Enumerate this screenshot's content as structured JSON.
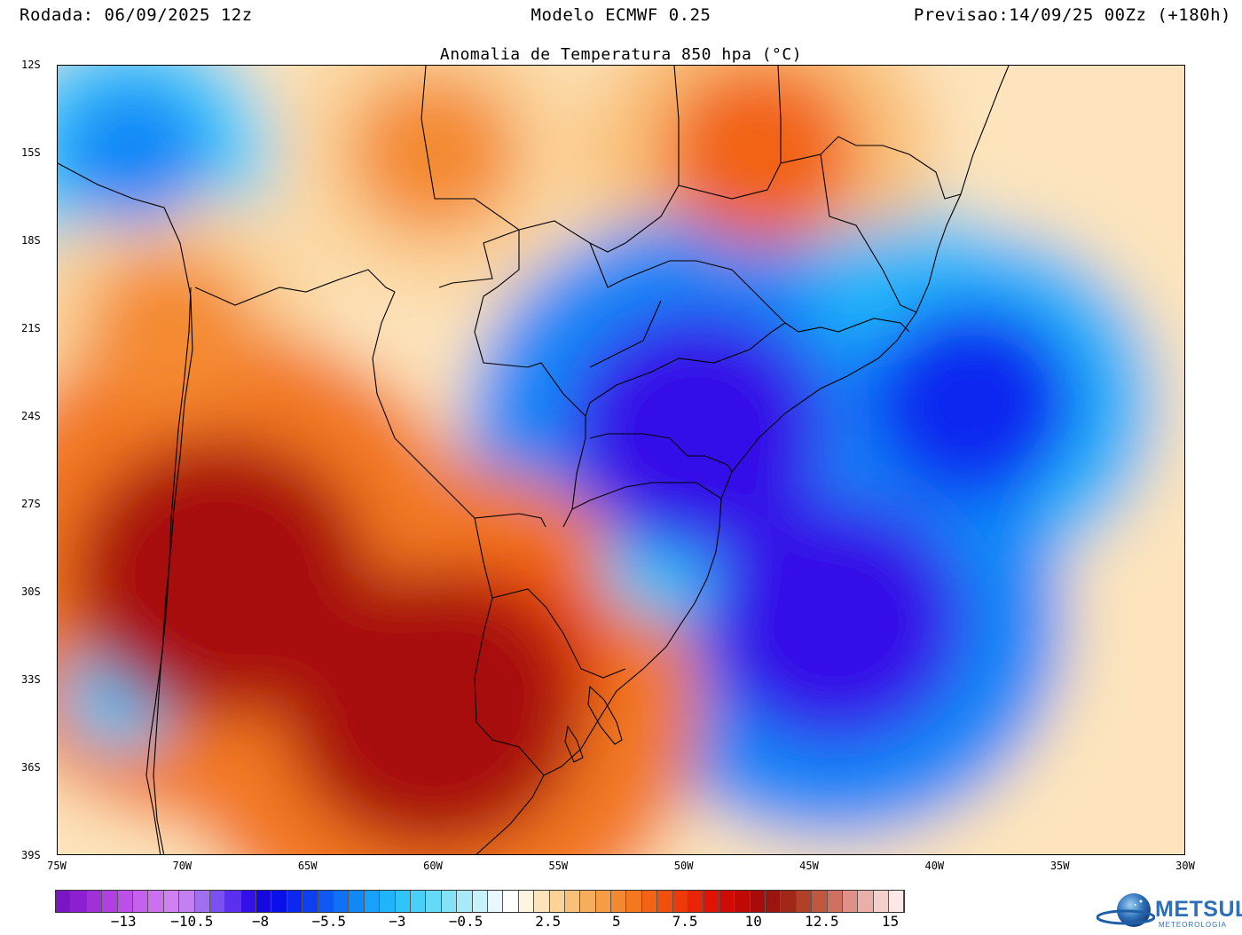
{
  "header": {
    "left": "Rodada: 06/09/2025 12z",
    "center": "Modelo ECMWF 0.25",
    "right": "Previsao:14/09/25 00Zz (+180h)"
  },
  "map": {
    "title": "Anomalia de Temperatura 850 hpa (°C)",
    "lat_labels": [
      "12S",
      "15S",
      "18S",
      "21S",
      "24S",
      "27S",
      "30S",
      "33S",
      "36S",
      "39S"
    ],
    "lon_labels": [
      "75W",
      "70W",
      "65W",
      "60W",
      "55W",
      "50W",
      "45W",
      "40W",
      "35W",
      "30W"
    ],
    "extent": {
      "lon_min": -75,
      "lon_max": -30,
      "lat_min": -39,
      "lat_max": -12
    }
  },
  "colorbar": {
    "labels": [
      "−13",
      "−10.5",
      "−8",
      "−5.5",
      "−3",
      "−0.5",
      "2.5",
      "5",
      "7.5",
      "10",
      "12.5",
      "15"
    ],
    "label_values": [
      -13,
      -10.5,
      -8,
      -5.5,
      -3,
      -0.5,
      2.5,
      5,
      7.5,
      10,
      12.5,
      15
    ],
    "min": -15.5,
    "max": 15.5,
    "colors": [
      "#7a16c2",
      "#8c20d0",
      "#a030d8",
      "#b040e0",
      "#bc50e8",
      "#c660ee",
      "#cc70f0",
      "#d080f2",
      "#c280f0",
      "#a070f0",
      "#7a50f0",
      "#5a30ee",
      "#3410e8",
      "#1808e0",
      "#0a10ea",
      "#0c28f0",
      "#0e40f2",
      "#1058f4",
      "#1070f6",
      "#1088f8",
      "#18a0fa",
      "#20b4fa",
      "#30c4fa",
      "#48d0fa",
      "#64daf8",
      "#84e2f8",
      "#a8eaf8",
      "#c8f2fa",
      "#e8f8fc",
      "#ffffff",
      "#fff4e0",
      "#fde4bc",
      "#fbd298",
      "#f9c078",
      "#f7ae5c",
      "#f59c44",
      "#f48a30",
      "#f37820",
      "#f26414",
      "#f0500c",
      "#ee3a08",
      "#ea2406",
      "#e01204",
      "#d00a04",
      "#c00a06",
      "#a80c0a",
      "#9a1410",
      "#a02818",
      "#b04028",
      "#c05840",
      "#d07060",
      "#e09088",
      "#eab0a8",
      "#f4d0cc",
      "#fce8e6"
    ]
  },
  "anomaly_field": {
    "units": "°C",
    "background_c": 2.5,
    "features": [
      {
        "region": "Atlântico Sul / costa Sul-Sudeste",
        "lon": -44,
        "lat": -31,
        "anomaly": -8.5
      },
      {
        "region": "Sul de São Paulo / Paraná",
        "lon": -49.5,
        "lat": -24.5,
        "anomaly": -8.5
      },
      {
        "region": "Atlântico ao largo da Bahia/ES",
        "lon": -38.5,
        "lat": -23.5,
        "anomaly": -6.5
      },
      {
        "region": "Minas Gerais",
        "lon": -42.5,
        "lat": -19.5,
        "anomaly": -3.5
      },
      {
        "region": "Litoral de SC/RS",
        "lon": -51,
        "lat": -29,
        "anomaly": -3
      },
      {
        "region": "Peru / Andes",
        "lon": -72,
        "lat": -15,
        "anomaly": -4.5
      },
      {
        "region": "Costa do Chile central",
        "lon": -72.5,
        "lat": -33.5,
        "anomaly": -3
      },
      {
        "region": "Argentina central",
        "lon": -60,
        "lat": -34,
        "anomaly": 10
      },
      {
        "region": "Cordilheira / Mendoza",
        "lon": -68.5,
        "lat": -29.5,
        "anomaly": 10
      },
      {
        "region": "Uruguai",
        "lon": -57,
        "lat": -32,
        "anomaly": 6.5
      },
      {
        "region": "Goiás / DF",
        "lon": -47,
        "lat": -15,
        "anomaly": 6
      },
      {
        "region": "Mato Grosso / Bolívia",
        "lon": -60,
        "lat": -15,
        "anomaly": 5
      },
      {
        "region": "Norte do Chile",
        "lon": -70.5,
        "lat": -21,
        "anomaly": 5
      }
    ]
  },
  "logo": {
    "name": "METSUL",
    "subtitle": "METEOROLOGIA"
  }
}
